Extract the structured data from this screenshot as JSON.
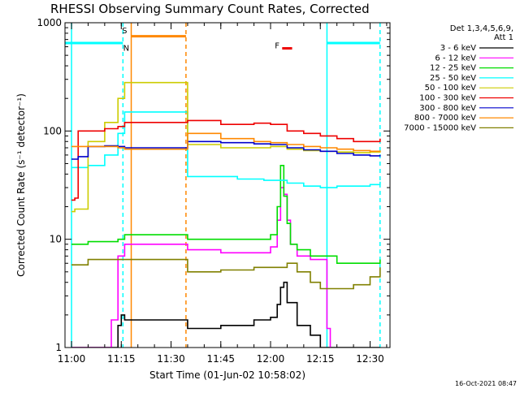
{
  "chart_data": {
    "type": "line",
    "title": "RHESSI Observing Summary Count Rates, Corrected",
    "xlabel": "Start Time (01-Jun-02 10:58:02)",
    "ylabel": "Corrected Count Rate (s⁻¹ detector⁻¹)",
    "yscale": "log",
    "ylim": [
      1,
      1000
    ],
    "xlim": [
      "10:58:02",
      "12:36:00"
    ],
    "x_ticks": [
      "11:00",
      "11:15",
      "11:30",
      "11:45",
      "12:00",
      "12:15",
      "12:30"
    ],
    "y_ticks": [
      1,
      10,
      100,
      1000
    ],
    "y_tick_labels": [
      "1",
      "10",
      "100",
      "1000"
    ],
    "legend_header": [
      "Det 1,3,4,5,6,9,",
      "Att 1"
    ],
    "series": [
      {
        "name": "3 - 6 keV",
        "color": "#000000",
        "x": [
          "11:00",
          "11:10",
          "11:14",
          "11:15",
          "11:16",
          "11:35",
          "11:45",
          "11:55",
          "12:00",
          "12:02",
          "12:03",
          "12:04",
          "12:05",
          "12:08",
          "12:12",
          "12:15",
          "12:20",
          "12:30",
          "12:33"
        ],
        "y": [
          1.0,
          1.0,
          1.6,
          2.0,
          1.8,
          1.5,
          1.6,
          1.8,
          1.9,
          2.5,
          3.6,
          4.0,
          2.6,
          1.6,
          1.3,
          1.0,
          1.0,
          1.0,
          1.0
        ]
      },
      {
        "name": "6 - 12 keV",
        "color": "#ff00ff",
        "x": [
          "11:00",
          "11:10",
          "11:12",
          "11:14",
          "11:16",
          "11:35",
          "11:45",
          "11:55",
          "11:58",
          "12:00",
          "12:02",
          "12:03",
          "12:04",
          "12:05",
          "12:06",
          "12:08",
          "12:12",
          "12:15",
          "12:17",
          "12:18"
        ],
        "y": [
          1.0,
          1.0,
          1.8,
          7.0,
          9.0,
          8.0,
          7.5,
          7.5,
          7.5,
          8.5,
          15,
          30,
          26,
          15,
          9,
          7.0,
          6.5,
          6.5,
          1.5,
          1.0
        ]
      },
      {
        "name": "12 - 25 keV",
        "color": "#00dd00",
        "x": [
          "11:00",
          "11:05",
          "11:10",
          "11:14",
          "11:16",
          "11:35",
          "11:40",
          "11:45",
          "11:50",
          "11:55",
          "12:00",
          "12:02",
          "12:03",
          "12:04",
          "12:05",
          "12:06",
          "12:08",
          "12:12",
          "12:17",
          "12:20",
          "12:25",
          "12:30",
          "12:33"
        ],
        "y": [
          9,
          9.5,
          9.5,
          10,
          11,
          10,
          10,
          10,
          10,
          10,
          11,
          20,
          48,
          25,
          14,
          9,
          8,
          7,
          7,
          6,
          6,
          6,
          6.5
        ]
      },
      {
        "name": "25 - 50 keV",
        "color": "#00ffff",
        "x": [
          "11:00",
          "11:01",
          "11:05",
          "11:10",
          "11:14",
          "11:16",
          "11:35",
          "11:40",
          "11:50",
          "11:58",
          "12:05",
          "12:10",
          "12:15",
          "12:20",
          "12:25",
          "12:30",
          "12:33"
        ],
        "y": [
          46,
          46,
          48,
          60,
          95,
          150,
          38,
          38,
          36,
          35,
          33,
          31,
          30,
          31,
          31,
          32,
          34
        ]
      },
      {
        "name": "50 - 100 keV",
        "color": "#cccc00",
        "x": [
          "11:00",
          "11:01",
          "11:05",
          "11:10",
          "11:14",
          "11:16",
          "11:35",
          "11:45",
          "11:55",
          "12:00",
          "12:05",
          "12:10",
          "12:15",
          "12:20",
          "12:25",
          "12:30",
          "12:33"
        ],
        "y": [
          18,
          19,
          80,
          120,
          200,
          280,
          75,
          70,
          70,
          72,
          68,
          66,
          65,
          64,
          63,
          64,
          66
        ]
      },
      {
        "name": "100 - 300 keV",
        "color": "#ee0000",
        "x": [
          "11:00",
          "11:01",
          "11:02",
          "11:10",
          "11:14",
          "11:16",
          "11:35",
          "11:45",
          "11:55",
          "12:00",
          "12:05",
          "12:10",
          "12:15",
          "12:20",
          "12:25",
          "12:30",
          "12:33"
        ],
        "y": [
          23,
          24,
          100,
          105,
          110,
          120,
          125,
          115,
          118,
          115,
          100,
          95,
          90,
          85,
          80,
          80,
          85
        ]
      },
      {
        "name": "300 - 800 keV",
        "color": "#0000cc",
        "x": [
          "11:00",
          "11:02",
          "11:05",
          "11:10",
          "11:14",
          "11:16",
          "11:35",
          "11:45",
          "11:55",
          "12:00",
          "12:05",
          "12:10",
          "12:15",
          "12:20",
          "12:25",
          "12:30",
          "12:33"
        ],
        "y": [
          55,
          58,
          72,
          73,
          72,
          70,
          80,
          78,
          76,
          75,
          70,
          67,
          65,
          62,
          60,
          59,
          60
        ]
      },
      {
        "name": "800 - 7000 keV",
        "color": "#ff8800",
        "x": [
          "11:00",
          "11:05",
          "11:10",
          "11:14",
          "11:16",
          "11:35",
          "11:45",
          "11:55",
          "12:00",
          "12:05",
          "12:10",
          "12:15",
          "12:20",
          "12:25",
          "12:30",
          "12:33"
        ],
        "y": [
          72,
          72,
          72,
          70,
          68,
          95,
          85,
          80,
          78,
          75,
          72,
          70,
          68,
          66,
          65,
          66
        ]
      },
      {
        "name": "7000 - 15000 keV",
        "color": "#808000",
        "x": [
          "11:00",
          "11:05",
          "11:10",
          "11:14",
          "11:16",
          "11:35",
          "11:45",
          "11:55",
          "12:00",
          "12:05",
          "12:08",
          "12:12",
          "12:15",
          "12:20",
          "12:25",
          "12:30",
          "12:33"
        ],
        "y": [
          5.8,
          6.5,
          6.5,
          6.5,
          6.5,
          5.0,
          5.2,
          5.5,
          5.5,
          6.0,
          5.0,
          4.0,
          3.5,
          3.5,
          3.8,
          4.5,
          5.5
        ]
      }
    ],
    "annotations": [
      {
        "kind": "saa_flag_bar",
        "color": "#00ffff",
        "y": 650,
        "x_start": "10:58:02",
        "x_end": "11:15:30"
      },
      {
        "kind": "night_bar",
        "color": "#ff8800",
        "y": 750,
        "x_start": "11:18:00",
        "x_end": "11:34:30"
      },
      {
        "kind": "saa_flag_bar",
        "color": "#00ffff",
        "y": 650,
        "x_start": "12:17:00",
        "x_end": "12:33:00"
      },
      {
        "kind": "flare_bar",
        "color": "#ee0000",
        "y": 580,
        "x_start": "12:03:30",
        "x_end": "12:06:30"
      },
      {
        "kind": "vline",
        "color": "#00ffff",
        "dashed": false,
        "x": "11:00"
      },
      {
        "kind": "vline",
        "color": "#00ffff",
        "dashed": true,
        "x": "11:15:30"
      },
      {
        "kind": "vline",
        "color": "#ff8800",
        "dashed": false,
        "x": "11:18:00"
      },
      {
        "kind": "vline",
        "color": "#ff8800",
        "dashed": true,
        "x": "11:34:30"
      },
      {
        "kind": "vline",
        "color": "#00ffff",
        "dashed": false,
        "x": "12:17:00"
      },
      {
        "kind": "vline",
        "color": "#00ffff",
        "dashed": true,
        "x": "12:33:00"
      }
    ],
    "markers": [
      {
        "text": "S",
        "color": "#ff8800",
        "x": "11:16:00",
        "y": 800
      },
      {
        "text": "N",
        "color": "#00ffff",
        "x": "11:16:30",
        "y": 550
      },
      {
        "text": "F",
        "color": "#ee0000",
        "x": "12:02:00",
        "y": 580
      }
    ],
    "footer": "16-Oct-2021 08:47"
  }
}
